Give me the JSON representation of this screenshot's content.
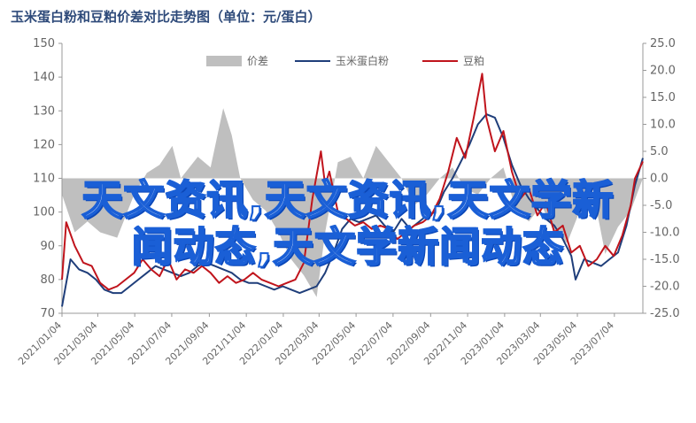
{
  "title": "玉米蛋白粉和豆粕价差对比走势图（单位：元/蛋白）",
  "overlay_text": {
    "line1": "天文资讯,天文资讯,天文学新",
    "line2": "闻动态,天文学新闻动态"
  },
  "colors": {
    "spread": "#bfbfbf",
    "corn": "#1f3e7a",
    "soy": "#c0141c",
    "overlay": "#1a5fd6"
  },
  "chart_data": {
    "type": "line",
    "title": "玉米蛋白粉和豆粕价差对比走势图（单位：元/蛋白）",
    "legend": [
      "价差",
      "玉米蛋白粉",
      "豆粕"
    ],
    "legend_placement": "top-center",
    "y_left": {
      "min": 70,
      "max": 150,
      "ticks": [
        70,
        80,
        90,
        100,
        110,
        120,
        130,
        140,
        150
      ]
    },
    "y_right": {
      "min": -25,
      "max": 25,
      "ticks": [
        25.0,
        20.0,
        15.0,
        10.0,
        5.0,
        0.0,
        -5.0,
        -10.0,
        -15.0,
        -20.0,
        -25.0
      ],
      "tick_labels": [
        "25.0",
        "20.0",
        "15.0",
        "10.0",
        "5.0",
        "0.0",
        "-5.0",
        "-10.0",
        "-15.0",
        "-20.0",
        "-25.0"
      ]
    },
    "x_ticks": [
      "2021/01/04",
      "2021/03/04",
      "2021/05/04",
      "2021/07/04",
      "2021/09/04",
      "2021/11/04",
      "2022/01/04",
      "2022/03/04",
      "2022/05/04",
      "2022/07/04",
      "2022/09/04",
      "2022/11/04",
      "2023/01/04",
      "2023/03/04",
      "2023/05/04",
      "2023/07/04"
    ],
    "x_range": [
      "2021/01/04",
      "2023/08/20"
    ],
    "series": [
      {
        "name": "价差",
        "type": "area",
        "axis": "right",
        "points": [
          [
            "2021/01/04",
            -3
          ],
          [
            "2021/01/25",
            -10
          ],
          [
            "2021/02/15",
            -8
          ],
          [
            "2021/03/08",
            -10
          ],
          [
            "2021/04/05",
            -11
          ],
          [
            "2021/05/03",
            -3
          ],
          [
            "2021/05/24",
            1
          ],
          [
            "2021/06/14",
            2.5
          ],
          [
            "2021/07/05",
            6
          ],
          [
            "2021/07/19",
            0
          ],
          [
            "2021/08/16",
            4
          ],
          [
            "2021/09/06",
            2
          ],
          [
            "2021/09/27",
            13
          ],
          [
            "2021/10/11",
            8
          ],
          [
            "2021/10/25",
            0
          ],
          [
            "2021/11/15",
            -4
          ],
          [
            "2021/12/06",
            -6
          ],
          [
            "2021/12/27",
            -10
          ],
          [
            "2022/01/17",
            -15
          ],
          [
            "2022/02/07",
            -18
          ],
          [
            "2022/02/28",
            -22
          ],
          [
            "2022/03/14",
            -10
          ],
          [
            "2022/04/04",
            3
          ],
          [
            "2022/04/25",
            4
          ],
          [
            "2022/05/16",
            0
          ],
          [
            "2022/06/06",
            6
          ],
          [
            "2022/06/27",
            3
          ],
          [
            "2022/07/18",
            0
          ],
          [
            "2022/08/08",
            -5
          ],
          [
            "2022/08/29",
            -3
          ],
          [
            "2022/09/19",
            0
          ],
          [
            "2022/10/10",
            2
          ],
          [
            "2022/10/31",
            -2
          ],
          [
            "2022/11/21",
            -3
          ],
          [
            "2022/12/12",
            0
          ],
          [
            "2023/01/02",
            2
          ],
          [
            "2023/01/23",
            -6
          ],
          [
            "2023/02/13",
            -8
          ],
          [
            "2023/03/06",
            -5
          ],
          [
            "2023/03/27",
            -10
          ],
          [
            "2023/04/17",
            -12
          ],
          [
            "2023/05/08",
            -6
          ],
          [
            "2023/05/29",
            -2
          ],
          [
            "2023/06/19",
            -14
          ],
          [
            "2023/07/10",
            -9
          ],
          [
            "2023/07/31",
            -6
          ],
          [
            "2023/08/20",
            0
          ]
        ]
      },
      {
        "name": "玉米蛋白粉",
        "type": "line",
        "axis": "left",
        "points": [
          [
            "2021/01/04",
            72
          ],
          [
            "2021/01/18",
            86
          ],
          [
            "2021/02/01",
            83
          ],
          [
            "2021/02/15",
            82
          ],
          [
            "2021/03/01",
            80
          ],
          [
            "2021/03/15",
            77
          ],
          [
            "2021/03/29",
            76
          ],
          [
            "2021/04/12",
            76
          ],
          [
            "2021/04/26",
            78
          ],
          [
            "2021/05/10",
            80
          ],
          [
            "2021/05/24",
            82
          ],
          [
            "2021/06/07",
            84
          ],
          [
            "2021/06/21",
            83
          ],
          [
            "2021/07/05",
            82
          ],
          [
            "2021/07/19",
            81
          ],
          [
            "2021/08/02",
            82
          ],
          [
            "2021/08/16",
            84
          ],
          [
            "2021/08/30",
            85
          ],
          [
            "2021/09/13",
            84
          ],
          [
            "2021/09/27",
            83
          ],
          [
            "2021/10/11",
            82
          ],
          [
            "2021/10/25",
            80
          ],
          [
            "2021/11/08",
            79
          ],
          [
            "2021/11/22",
            79
          ],
          [
            "2021/12/06",
            78
          ],
          [
            "2021/12/20",
            77
          ],
          [
            "2022/01/03",
            78
          ],
          [
            "2022/01/17",
            77
          ],
          [
            "2022/01/31",
            76
          ],
          [
            "2022/02/14",
            77
          ],
          [
            "2022/02/28",
            78
          ],
          [
            "2022/03/14",
            82
          ],
          [
            "2022/03/28",
            88
          ],
          [
            "2022/04/11",
            95
          ],
          [
            "2022/04/25",
            98
          ],
          [
            "2022/05/09",
            97
          ],
          [
            "2022/05/23",
            98
          ],
          [
            "2022/06/06",
            99
          ],
          [
            "2022/06/20",
            96
          ],
          [
            "2022/07/04",
            94
          ],
          [
            "2022/07/18",
            98
          ],
          [
            "2022/08/01",
            95
          ],
          [
            "2022/08/15",
            97
          ],
          [
            "2022/08/29",
            99
          ],
          [
            "2022/09/12",
            100
          ],
          [
            "2022/09/26",
            106
          ],
          [
            "2022/10/10",
            110
          ],
          [
            "2022/10/24",
            115
          ],
          [
            "2022/11/07",
            120
          ],
          [
            "2022/11/21",
            126
          ],
          [
            "2022/12/05",
            129
          ],
          [
            "2022/12/19",
            128
          ],
          [
            "2023/01/02",
            122
          ],
          [
            "2023/01/16",
            114
          ],
          [
            "2023/01/30",
            108
          ],
          [
            "2023/02/13",
            104
          ],
          [
            "2023/02/27",
            101
          ],
          [
            "2023/03/13",
            98
          ],
          [
            "2023/03/27",
            96
          ],
          [
            "2023/04/10",
            92
          ],
          [
            "2023/04/24",
            87
          ],
          [
            "2023/05/01",
            80
          ],
          [
            "2023/05/15",
            86
          ],
          [
            "2023/05/29",
            85
          ],
          [
            "2023/06/12",
            84
          ],
          [
            "2023/06/26",
            86
          ],
          [
            "2023/07/10",
            88
          ],
          [
            "2023/07/24",
            96
          ],
          [
            "2023/08/07",
            108
          ],
          [
            "2023/08/20",
            116
          ]
        ]
      },
      {
        "name": "豆粕",
        "type": "line",
        "axis": "left",
        "points": [
          [
            "2021/01/04",
            80
          ],
          [
            "2021/01/11",
            97
          ],
          [
            "2021/01/25",
            90
          ],
          [
            "2021/02/08",
            85
          ],
          [
            "2021/02/22",
            84
          ],
          [
            "2021/03/08",
            79
          ],
          [
            "2021/03/22",
            77
          ],
          [
            "2021/04/05",
            78
          ],
          [
            "2021/04/19",
            80
          ],
          [
            "2021/05/03",
            82
          ],
          [
            "2021/05/17",
            86
          ],
          [
            "2021/05/31",
            83
          ],
          [
            "2021/06/14",
            81
          ],
          [
            "2021/06/28",
            86
          ],
          [
            "2021/07/12",
            80
          ],
          [
            "2021/07/26",
            83
          ],
          [
            "2021/08/09",
            82
          ],
          [
            "2021/08/23",
            84
          ],
          [
            "2021/09/06",
            82
          ],
          [
            "2021/09/20",
            79
          ],
          [
            "2021/10/04",
            81
          ],
          [
            "2021/10/18",
            79
          ],
          [
            "2021/11/01",
            80
          ],
          [
            "2021/11/15",
            82
          ],
          [
            "2021/11/29",
            80
          ],
          [
            "2021/12/13",
            79
          ],
          [
            "2021/12/27",
            78
          ],
          [
            "2022/01/10",
            79
          ],
          [
            "2022/01/24",
            80
          ],
          [
            "2022/02/07",
            85
          ],
          [
            "2022/02/21",
            104
          ],
          [
            "2022/03/07",
            118
          ],
          [
            "2022/03/14",
            108
          ],
          [
            "2022/03/21",
            112
          ],
          [
            "2022/04/04",
            100
          ],
          [
            "2022/04/18",
            98
          ],
          [
            "2022/05/02",
            96
          ],
          [
            "2022/05/16",
            97
          ],
          [
            "2022/05/30",
            95
          ],
          [
            "2022/06/13",
            96
          ],
          [
            "2022/06/27",
            95
          ],
          [
            "2022/07/11",
            92
          ],
          [
            "2022/07/25",
            94
          ],
          [
            "2022/08/08",
            96
          ],
          [
            "2022/08/22",
            97
          ],
          [
            "2022/09/05",
            99
          ],
          [
            "2022/09/19",
            104
          ],
          [
            "2022/10/03",
            112
          ],
          [
            "2022/10/17",
            122
          ],
          [
            "2022/10/31",
            116
          ],
          [
            "2022/11/14",
            128
          ],
          [
            "2022/11/28",
            141
          ],
          [
            "2022/12/05",
            128
          ],
          [
            "2022/12/19",
            118
          ],
          [
            "2023/01/02",
            124
          ],
          [
            "2023/01/16",
            112
          ],
          [
            "2023/01/30",
            104
          ],
          [
            "2023/02/13",
            107
          ],
          [
            "2023/02/27",
            99
          ],
          [
            "2023/03/13",
            103
          ],
          [
            "2023/03/27",
            94
          ],
          [
            "2023/04/10",
            96
          ],
          [
            "2023/04/24",
            88
          ],
          [
            "2023/05/08",
            90
          ],
          [
            "2023/05/22",
            84
          ],
          [
            "2023/06/05",
            86
          ],
          [
            "2023/06/19",
            90
          ],
          [
            "2023/07/03",
            87
          ],
          [
            "2023/07/17",
            93
          ],
          [
            "2023/07/31",
            102
          ],
          [
            "2023/08/07",
            110
          ],
          [
            "2023/08/20",
            115
          ]
        ]
      }
    ]
  }
}
